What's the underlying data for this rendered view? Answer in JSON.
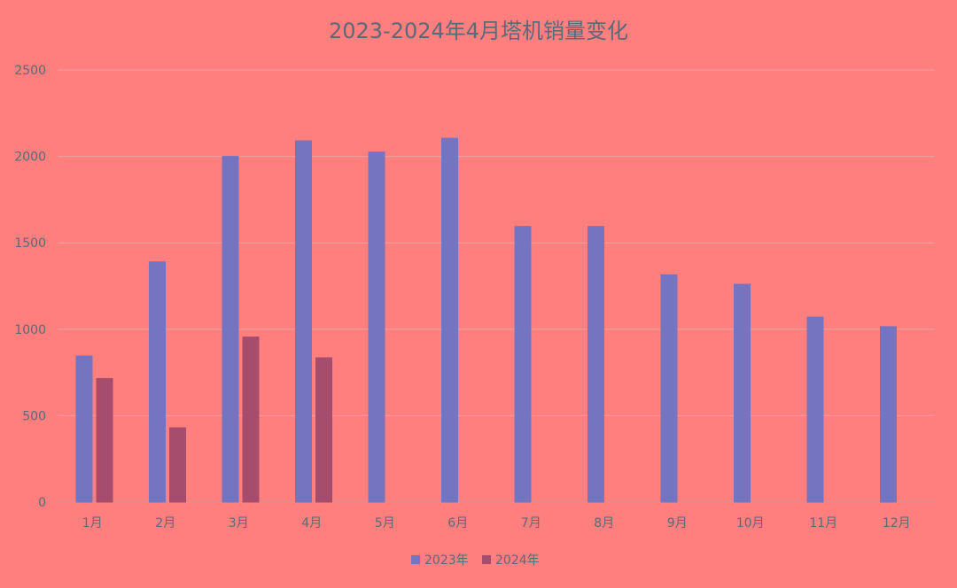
{
  "chart_data": {
    "type": "bar",
    "title": "2023-2024年4月塔机销量变化",
    "xlabel": "",
    "ylabel": "",
    "categories": [
      "1月",
      "2月",
      "3月",
      "4月",
      "5月",
      "6月",
      "7月",
      "8月",
      "9月",
      "10月",
      "11月",
      "12月"
    ],
    "series": [
      {
        "name": "2023年",
        "color": "#7474c1",
        "values": [
          845,
          1390,
          2000,
          2090,
          2025,
          2105,
          1595,
          1595,
          1315,
          1260,
          1070,
          1015
        ]
      },
      {
        "name": "2024年",
        "color": "#a64d6e",
        "values": [
          715,
          430,
          955,
          835,
          null,
          null,
          null,
          null,
          null,
          null,
          null,
          null
        ]
      }
    ],
    "ylim": [
      0,
      2500
    ],
    "yticks": [
      0,
      500,
      1000,
      1500,
      2000,
      2500
    ],
    "grid": true,
    "legend": "bottom"
  }
}
